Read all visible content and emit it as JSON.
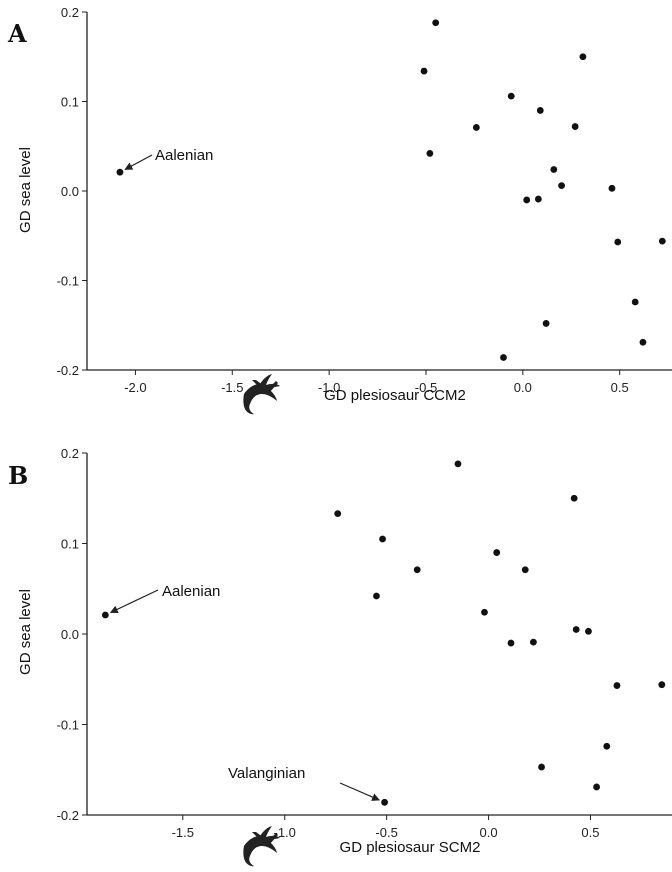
{
  "chart_data": [
    {
      "type": "scatter",
      "panel": "A",
      "xlabel": "GD plesiosaur CCM2",
      "ylabel": "GD sea level",
      "xlim": [
        -2.25,
        0.77
      ],
      "ylim": [
        -0.2,
        0.2
      ],
      "xticks": [
        -2.0,
        -1.5,
        -1.0,
        -0.5,
        0.0,
        0.5
      ],
      "xtick_labels": [
        "-2.0",
        "-1.5",
        "-1.0",
        "-0.5",
        "0.0",
        "0.5"
      ],
      "yticks": [
        -0.2,
        -0.1,
        0.0,
        0.1,
        0.2
      ],
      "ytick_labels": [
        "-0.2",
        "-0.1",
        "0.0",
        "0.1",
        "0.2"
      ],
      "points": [
        {
          "x": -2.08,
          "y": 0.021
        },
        {
          "x": -0.45,
          "y": 0.188
        },
        {
          "x": -0.51,
          "y": 0.134
        },
        {
          "x": -0.48,
          "y": 0.042
        },
        {
          "x": -0.24,
          "y": 0.071
        },
        {
          "x": -0.06,
          "y": 0.106
        },
        {
          "x": 0.09,
          "y": 0.09
        },
        {
          "x": 0.27,
          "y": 0.072
        },
        {
          "x": 0.31,
          "y": 0.15
        },
        {
          "x": 0.16,
          "y": 0.024
        },
        {
          "x": 0.2,
          "y": 0.006
        },
        {
          "x": 0.02,
          "y": -0.01
        },
        {
          "x": 0.08,
          "y": -0.009
        },
        {
          "x": 0.46,
          "y": 0.003
        },
        {
          "x": 0.49,
          "y": -0.057
        },
        {
          "x": 0.72,
          "y": -0.056
        },
        {
          "x": 0.58,
          "y": -0.124
        },
        {
          "x": 0.62,
          "y": -0.169
        },
        {
          "x": 0.12,
          "y": -0.148
        },
        {
          "x": -0.1,
          "y": -0.186
        }
      ],
      "annotations": [
        {
          "text": "Aalenian",
          "x": -2.08,
          "y": 0.021
        }
      ]
    },
    {
      "type": "scatter",
      "panel": "B",
      "xlabel": "GD plesiosaur SCM2",
      "ylabel": "GD sea level",
      "xlim": [
        -1.97,
        0.9
      ],
      "ylim": [
        -0.2,
        0.2
      ],
      "xticks": [
        -1.5,
        -1.0,
        -0.5,
        0.0,
        0.5
      ],
      "xtick_labels": [
        "-1.5",
        "-1.0",
        "-0.5",
        "0.0",
        "0.5"
      ],
      "yticks": [
        -0.2,
        -0.1,
        0.0,
        0.1,
        0.2
      ],
      "ytick_labels": [
        "-0.2",
        "-0.1",
        "0.0",
        "0.1",
        "0.2"
      ],
      "points": [
        {
          "x": -1.88,
          "y": 0.021
        },
        {
          "x": -0.74,
          "y": 0.133
        },
        {
          "x": -0.52,
          "y": 0.105
        },
        {
          "x": -0.55,
          "y": 0.042
        },
        {
          "x": -0.35,
          "y": 0.071
        },
        {
          "x": -0.15,
          "y": 0.188
        },
        {
          "x": 0.04,
          "y": 0.09
        },
        {
          "x": 0.18,
          "y": 0.071
        },
        {
          "x": 0.42,
          "y": 0.15
        },
        {
          "x": -0.02,
          "y": 0.024
        },
        {
          "x": 0.11,
          "y": -0.01
        },
        {
          "x": 0.22,
          "y": -0.009
        },
        {
          "x": 0.43,
          "y": 0.005
        },
        {
          "x": 0.49,
          "y": 0.003
        },
        {
          "x": 0.63,
          "y": -0.057
        },
        {
          "x": 0.85,
          "y": -0.056
        },
        {
          "x": 0.58,
          "y": -0.124
        },
        {
          "x": 0.53,
          "y": -0.169
        },
        {
          "x": 0.26,
          "y": -0.147
        },
        {
          "x": -0.51,
          "y": -0.186
        }
      ],
      "annotations": [
        {
          "text": "Aalenian",
          "x": -1.88,
          "y": 0.021
        },
        {
          "text": "Valanginian",
          "x": -0.51,
          "y": -0.186
        }
      ]
    }
  ],
  "icons": {
    "plesiosaur": "plesiosaur-silhouette-icon"
  }
}
